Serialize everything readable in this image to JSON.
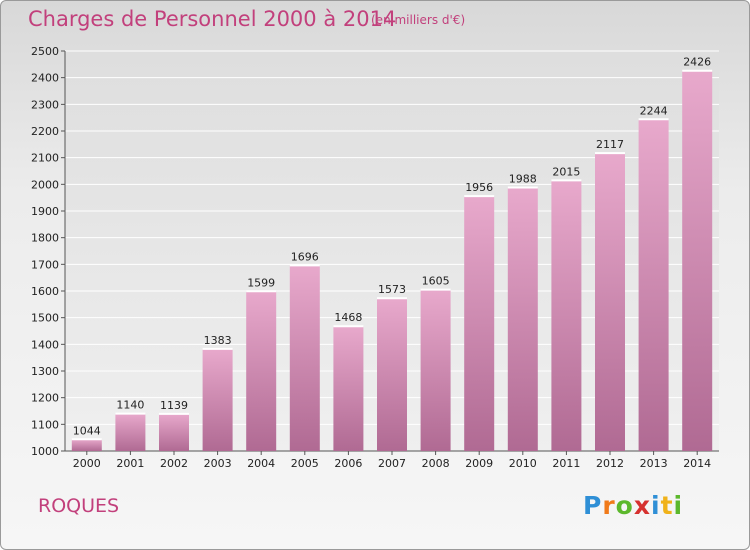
{
  "header": {
    "title": "Charges de Personnel 2000 à 2014",
    "unit": "(en milliers d'€)"
  },
  "footer": {
    "commune": "ROQUES",
    "logo_letters": [
      "P",
      "r",
      "o",
      "x",
      "i",
      "t",
      "i"
    ],
    "logo_colors": [
      "#2f8fd6",
      "#f07a1a",
      "#5cb82c",
      "#d6312f",
      "#2f8fd6",
      "#f0b21a",
      "#5cb82c"
    ]
  },
  "chart_data": {
    "type": "bar",
    "title": "Charges de Personnel 2000 à 2014",
    "subtitle": "(en milliers d'€)",
    "categories": [
      "2000",
      "2001",
      "2002",
      "2003",
      "2004",
      "2005",
      "2006",
      "2007",
      "2008",
      "2009",
      "2010",
      "2011",
      "2012",
      "2013",
      "2014"
    ],
    "values": [
      1044,
      1140,
      1139,
      1383,
      1599,
      1696,
      1468,
      1573,
      1605,
      1956,
      1988,
      2015,
      2117,
      2244,
      2426
    ],
    "ylim": [
      1000,
      2500
    ],
    "yticks": [
      1000,
      1100,
      1200,
      1300,
      1400,
      1500,
      1600,
      1700,
      1800,
      1900,
      2000,
      2100,
      2200,
      2300,
      2400,
      2500
    ],
    "grid": true,
    "bar_color": "#d584b2",
    "xlabel": "",
    "ylabel": ""
  }
}
